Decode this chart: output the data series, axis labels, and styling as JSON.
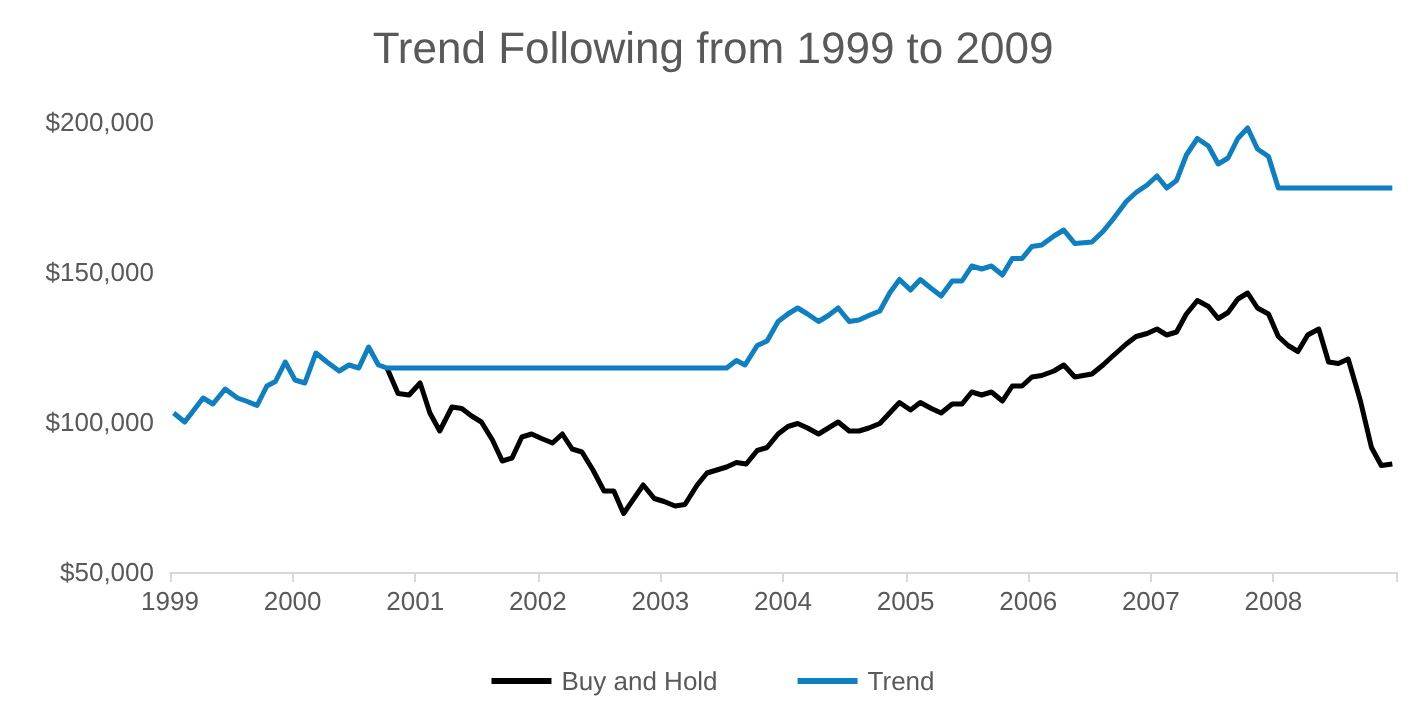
{
  "chart_data": {
    "type": "line",
    "title": "Trend Following from 1999 to 2009",
    "legend": "bottom",
    "grid": false,
    "xlim": [
      1999,
      2009
    ],
    "xticks": [
      1999,
      2000,
      2001,
      2002,
      2003,
      2004,
      2005,
      2006,
      2007,
      2008,
      {
        "value": 2009,
        "label": null
      }
    ],
    "ylim": [
      50000,
      200000
    ],
    "yticks": [
      {
        "value": 50000,
        "label": "$50,000"
      },
      {
        "value": 100000,
        "label": "$100,000"
      },
      {
        "value": 150000,
        "label": "$150,000"
      },
      {
        "value": 200000,
        "label": "$200,000"
      }
    ],
    "series": [
      {
        "name": "Buy and Hold",
        "color": "#000000",
        "x": [
          2000.77,
          2000.86,
          2000.95,
          2001.04,
          2001.12,
          2001.2,
          2001.3,
          2001.38,
          2001.46,
          2001.54,
          2001.63,
          2001.71,
          2001.79,
          2001.87,
          2001.95,
          2002.03,
          2002.12,
          2002.2,
          2002.28,
          2002.36,
          2002.45,
          2002.54,
          2002.62,
          2002.7,
          2002.86,
          2002.95,
          2003.03,
          2003.12,
          2003.2,
          2003.3,
          2003.38,
          2003.46,
          2003.54,
          2003.62,
          2003.7,
          2003.79,
          2003.87,
          2003.96,
          2004.04,
          2004.12,
          2004.2,
          2004.29,
          2004.37,
          2004.45,
          2004.54,
          2004.62,
          2004.7,
          2004.79,
          2004.87,
          2004.95,
          2005.04,
          2005.12,
          2005.21,
          2005.29,
          2005.38,
          2005.46,
          2005.54,
          2005.62,
          2005.7,
          2005.79,
          2005.87,
          2005.95,
          2006.03,
          2006.11,
          2006.21,
          2006.29,
          2006.38,
          2006.52,
          2006.61,
          2006.69,
          2006.8,
          2006.88,
          2006.97,
          2007.05,
          2007.13,
          2007.21,
          2007.29,
          2007.38,
          2007.47,
          2007.55,
          2007.63,
          2007.71,
          2007.79,
          2007.87,
          2007.96,
          2008.04,
          2008.12,
          2008.2,
          2008.28,
          2008.37,
          2008.45,
          2008.53,
          2008.61,
          2008.71,
          2008.8,
          2008.88,
          2008.97
        ],
        "values": [
          118000,
          109500,
          109000,
          113000,
          103000,
          97000,
          105000,
          104500,
          102000,
          100000,
          94000,
          87000,
          88000,
          95000,
          96000,
          94500,
          93000,
          96000,
          91000,
          90000,
          84000,
          77000,
          77000,
          69500,
          79000,
          74500,
          73500,
          72000,
          72500,
          79000,
          83000,
          84000,
          85000,
          86500,
          86000,
          90500,
          91500,
          96000,
          98500,
          99500,
          98000,
          96000,
          98000,
          100000,
          97000,
          97000,
          98000,
          99500,
          103000,
          106500,
          104000,
          106500,
          104500,
          103000,
          106000,
          106000,
          110000,
          109000,
          110000,
          107000,
          112000,
          112000,
          115000,
          115500,
          117000,
          119000,
          115000,
          116000,
          119000,
          122000,
          126000,
          128500,
          129500,
          131000,
          129000,
          130000,
          136000,
          140500,
          138500,
          134500,
          136500,
          141000,
          143000,
          138000,
          136000,
          128500,
          125500,
          123500,
          129000,
          131000,
          120000,
          119500,
          121000,
          107000,
          91500,
          85500,
          86000
        ]
      },
      {
        "name": "Trend",
        "color": "#0e7fc1",
        "x": [
          1999.03,
          1999.12,
          1999.27,
          1999.35,
          1999.45,
          1999.55,
          1999.62,
          1999.71,
          1999.79,
          1999.86,
          1999.94,
          2000.02,
          2000.1,
          2000.19,
          2000.28,
          2000.38,
          2000.46,
          2000.54,
          2000.62,
          2000.7,
          2000.77,
          2003.54,
          2003.62,
          2003.69,
          2003.79,
          2003.87,
          2003.96,
          2004.04,
          2004.12,
          2004.2,
          2004.29,
          2004.37,
          2004.45,
          2004.54,
          2004.62,
          2004.7,
          2004.79,
          2004.87,
          2004.95,
          2005.04,
          2005.12,
          2005.21,
          2005.29,
          2005.38,
          2005.46,
          2005.54,
          2005.62,
          2005.7,
          2005.79,
          2005.87,
          2005.95,
          2006.03,
          2006.11,
          2006.21,
          2006.29,
          2006.38,
          2006.52,
          2006.61,
          2006.69,
          2006.8,
          2006.88,
          2006.97,
          2007.05,
          2007.13,
          2007.21,
          2007.29,
          2007.38,
          2007.47,
          2007.55,
          2007.63,
          2007.71,
          2007.79,
          2007.87,
          2007.96,
          2008.04,
          2008.97
        ],
        "values": [
          103000,
          100000,
          108000,
          106000,
          111000,
          108000,
          107000,
          105500,
          112000,
          113500,
          120000,
          114000,
          113000,
          123000,
          120000,
          117000,
          119000,
          118000,
          125000,
          119000,
          118000,
          118000,
          120500,
          119000,
          125500,
          127000,
          133500,
          136000,
          138000,
          136000,
          133500,
          135500,
          138000,
          133500,
          134000,
          135500,
          137000,
          143000,
          147500,
          144000,
          147500,
          144500,
          142000,
          147000,
          147000,
          152000,
          151000,
          152000,
          149000,
          154500,
          154500,
          158500,
          159000,
          162000,
          164000,
          159500,
          160000,
          163500,
          167500,
          173500,
          176500,
          179000,
          182000,
          178000,
          180500,
          189000,
          194500,
          192000,
          186000,
          188000,
          194500,
          198000,
          191000,
          188500,
          178000,
          178000
        ]
      }
    ]
  }
}
